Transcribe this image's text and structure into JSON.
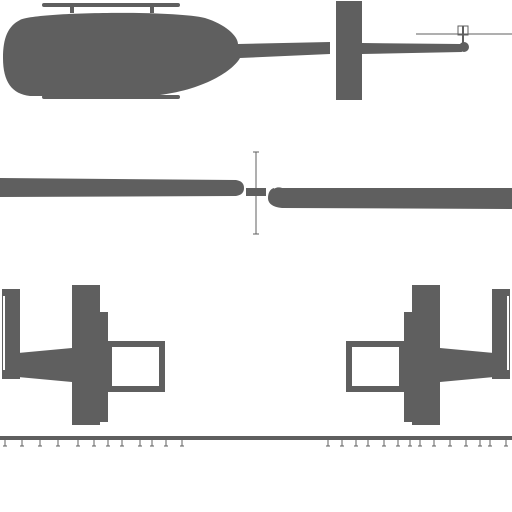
{
  "colors": {
    "background": "#ffffff",
    "silhouette": "#5f5f5f",
    "line": "#5f5f5f"
  },
  "icons": {
    "fuselage": "helicopter-side-silhouette-icon",
    "rotor": "main-rotor-blade-icon",
    "hub": "rotor-hub-icon",
    "gear": "landing-gear-icon"
  }
}
